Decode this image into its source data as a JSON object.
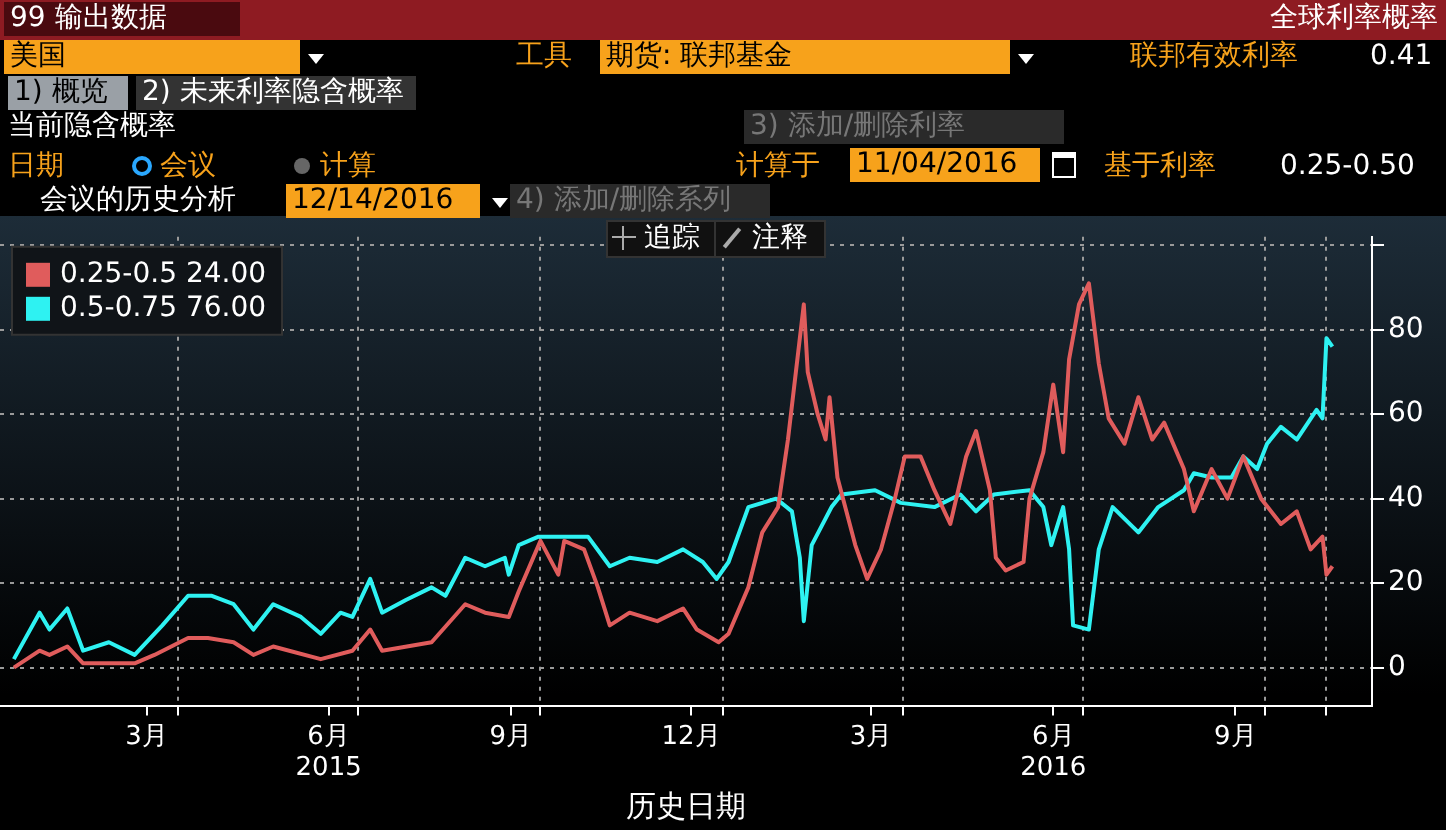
{
  "chart_data": {
    "type": "line",
    "title": "全球利率概率",
    "xlabel": "历史日期",
    "annotations": [
      "99 输出数据",
      "美国",
      "工具",
      "期货: 联邦基金",
      "联邦有效利率",
      "0.41",
      "1) 概览",
      "2) 未来利率隐含概率",
      "当前隐含概率",
      "3) 添加/删除利率",
      "日期",
      "会议",
      "计算",
      "计算于",
      "11/04/2016",
      "基于利率",
      "0.25-0.50",
      "会议的历史分析",
      "12/14/2016",
      "4) 添加/删除系列",
      "追踪",
      "注释"
    ],
    "xlim": [
      "2015-01-01",
      "2016-11-24"
    ],
    "xticks": [
      {
        "value": "2015-03-16",
        "label": "3月"
      },
      {
        "value": "2015-04-01",
        "label": null
      },
      {
        "value": "2015-06-16",
        "label": "6月\n2015"
      },
      {
        "value": "2015-07-01",
        "label": null
      },
      {
        "value": "2015-09-16",
        "label": "9月"
      },
      {
        "value": "2015-10-01",
        "label": null
      },
      {
        "value": "2015-12-16",
        "label": "12月"
      },
      {
        "value": "2016-01-01",
        "label": null
      },
      {
        "value": "2016-03-16",
        "label": "3月"
      },
      {
        "value": "2016-04-01",
        "label": null
      },
      {
        "value": "2016-06-16",
        "label": "6月\n2016"
      },
      {
        "value": "2016-07-01",
        "label": null
      },
      {
        "value": "2016-09-16",
        "label": "9月"
      },
      {
        "value": "2016-10-01",
        "label": null
      },
      {
        "value": "2016-11-01",
        "label": null
      }
    ],
    "ylim": [
      -9,
      102
    ],
    "yticks": [
      0,
      20,
      40,
      60,
      80,
      {
        "value": 100,
        "label": null
      }
    ],
    "grid": true,
    "legend": "top left",
    "marker": "none",
    "line_style": "solid",
    "series": [
      {
        "name": "0.25-0.5 24.00",
        "color": "#e05c5c",
        "x": [
          "2015-01-08",
          "2015-01-21",
          "2015-01-26",
          "2015-02-04",
          "2015-02-12",
          "2015-03-10",
          "2015-03-20",
          "2015-04-06",
          "2015-04-16",
          "2015-04-29",
          "2015-05-09",
          "2015-05-19",
          "2015-06-12",
          "2015-06-28",
          "2015-07-07",
          "2015-07-13",
          "2015-08-07",
          "2015-08-24",
          "2015-09-03",
          "2015-09-15",
          "2015-09-20",
          "2015-10-01",
          "2015-10-10",
          "2015-10-13",
          "2015-10-23",
          "2015-10-30",
          "2015-11-05",
          "2015-11-15",
          "2015-11-29",
          "2015-12-12",
          "2015-12-19",
          "2015-12-30",
          "2016-01-04",
          "2016-01-14",
          "2016-01-21",
          "2016-01-29",
          "2016-02-03",
          "2016-02-07",
          "2016-02-11",
          "2016-02-13",
          "2016-02-18",
          "2016-02-22",
          "2016-02-24",
          "2016-02-28",
          "2016-03-08",
          "2016-03-14",
          "2016-03-21",
          "2016-03-28",
          "2016-04-02",
          "2016-04-10",
          "2016-04-17",
          "2016-04-25",
          "2016-05-03",
          "2016-05-08",
          "2016-05-15",
          "2016-05-18",
          "2016-05-23",
          "2016-06-01",
          "2016-06-04",
          "2016-06-11",
          "2016-06-16",
          "2016-06-21",
          "2016-06-24",
          "2016-06-29",
          "2016-07-04",
          "2016-07-09",
          "2016-07-14",
          "2016-07-22",
          "2016-07-29",
          "2016-08-05",
          "2016-08-11",
          "2016-08-21",
          "2016-08-26",
          "2016-09-04",
          "2016-09-12",
          "2016-09-20",
          "2016-09-29",
          "2016-10-09",
          "2016-10-17",
          "2016-10-24",
          "2016-10-30",
          "2016-11-01",
          "2016-11-04"
        ],
        "values": [
          0,
          4,
          3,
          5,
          1,
          1,
          3,
          7,
          7,
          6,
          3,
          5,
          2,
          4,
          9,
          4,
          6,
          15,
          13,
          12,
          18,
          30,
          22,
          30,
          28,
          19,
          10,
          13,
          11,
          14,
          9,
          6,
          8,
          19,
          32,
          38,
          54,
          70,
          86,
          70,
          60,
          54,
          64,
          45,
          29,
          21,
          28,
          40,
          50,
          50,
          42,
          34,
          50,
          56,
          42,
          26,
          23,
          25,
          40,
          51,
          67,
          51,
          73,
          86,
          91,
          72,
          59,
          53,
          64,
          54,
          58,
          47,
          37,
          47,
          40,
          50,
          40,
          34,
          37,
          28,
          31,
          22,
          24
        ]
      },
      {
        "name": "0.5-0.75 76.00",
        "color": "#2ef2f2",
        "x": [
          "2015-01-08",
          "2015-01-21",
          "2015-01-26",
          "2015-02-04",
          "2015-02-12",
          "2015-02-25",
          "2015-03-10",
          "2015-03-24",
          "2015-04-06",
          "2015-04-18",
          "2015-04-29",
          "2015-05-09",
          "2015-05-19",
          "2015-06-02",
          "2015-06-12",
          "2015-06-22",
          "2015-06-28",
          "2015-07-07",
          "2015-07-13",
          "2015-07-25",
          "2015-08-07",
          "2015-08-14",
          "2015-08-24",
          "2015-09-03",
          "2015-09-13",
          "2015-09-15",
          "2015-09-20",
          "2015-09-30",
          "2015-10-13",
          "2015-10-25",
          "2015-11-05",
          "2015-11-15",
          "2015-11-29",
          "2015-12-12",
          "2015-12-22",
          "2015-12-29",
          "2016-01-04",
          "2016-01-14",
          "2016-01-28",
          "2016-02-05",
          "2016-02-09",
          "2016-02-11",
          "2016-02-15",
          "2016-02-25",
          "2016-03-01",
          "2016-03-18",
          "2016-03-31",
          "2016-04-17",
          "2016-04-30",
          "2016-05-08",
          "2016-05-17",
          "2016-06-04",
          "2016-06-11",
          "2016-06-15",
          "2016-06-21",
          "2016-06-24",
          "2016-06-26",
          "2016-07-04",
          "2016-07-09",
          "2016-07-16",
          "2016-07-29",
          "2016-08-08",
          "2016-08-21",
          "2016-08-26",
          "2016-09-04",
          "2016-09-14",
          "2016-09-20",
          "2016-09-27",
          "2016-10-02",
          "2016-10-09",
          "2016-10-17",
          "2016-10-27",
          "2016-10-30",
          "2016-11-01",
          "2016-11-04"
        ],
        "values": [
          2,
          13,
          9,
          14,
          4,
          6,
          3,
          10,
          17,
          17,
          15,
          9,
          15,
          12,
          8,
          13,
          12,
          21,
          13,
          16,
          19,
          17,
          26,
          24,
          26,
          22,
          29,
          31,
          31,
          31,
          24,
          26,
          25,
          28,
          25,
          21,
          25,
          38,
          40,
          37,
          26,
          11,
          29,
          38,
          41,
          42,
          39,
          38,
          41,
          37,
          41,
          42,
          38,
          29,
          38,
          28,
          10,
          9,
          28,
          38,
          32,
          38,
          42,
          46,
          45,
          45,
          50,
          47,
          53,
          57,
          54,
          61,
          59,
          78,
          76
        ]
      }
    ]
  }
}
